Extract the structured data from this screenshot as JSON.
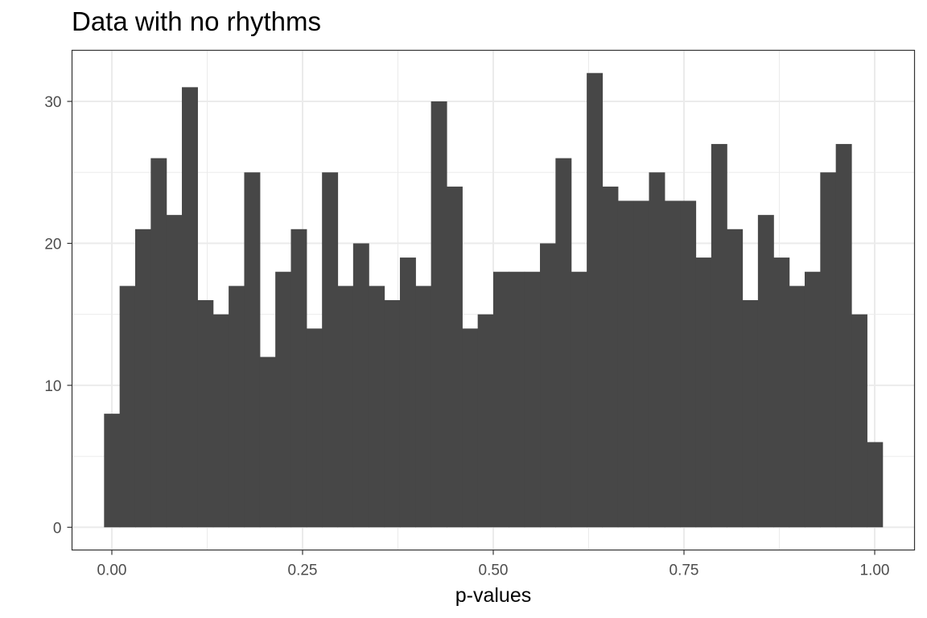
{
  "chart_data": {
    "type": "bar",
    "title": "Data with no rhythms",
    "xlabel": "p-values",
    "ylabel": "",
    "bin_width": 0.0204,
    "bin_centers": [
      0.0,
      0.0204,
      0.0408,
      0.0612,
      0.0816,
      0.102,
      0.1224,
      0.1429,
      0.1633,
      0.1837,
      0.2041,
      0.2245,
      0.2449,
      0.2653,
      0.2857,
      0.3061,
      0.3265,
      0.3469,
      0.3673,
      0.3878,
      0.4082,
      0.4286,
      0.449,
      0.4694,
      0.4898,
      0.5102,
      0.5306,
      0.551,
      0.5714,
      0.5918,
      0.6122,
      0.6327,
      0.6531,
      0.6735,
      0.6939,
      0.7143,
      0.7347,
      0.7551,
      0.7755,
      0.7959,
      0.8163,
      0.8367,
      0.8571,
      0.8776,
      0.898,
      0.9184,
      0.9388,
      0.9592,
      0.9796,
      1.0
    ],
    "values": [
      8,
      17,
      21,
      26,
      22,
      31,
      16,
      15,
      17,
      25,
      12,
      18,
      21,
      14,
      25,
      17,
      20,
      17,
      16,
      19,
      17,
      30,
      24,
      14,
      15,
      18,
      18,
      18,
      20,
      26,
      18,
      32,
      24,
      23,
      23,
      25,
      23,
      23,
      19,
      27,
      21,
      16,
      22,
      19,
      17,
      18,
      25,
      27,
      15,
      6
    ],
    "xlim": [
      -0.0522,
      1.0522
    ],
    "ylim": [
      -1.6,
      33.6
    ],
    "x_ticks": [
      0.0,
      0.25,
      0.5,
      0.75,
      1.0
    ],
    "x_tick_labels": [
      "0.00",
      "0.25",
      "0.50",
      "0.75",
      "1.00"
    ],
    "y_ticks": [
      0,
      10,
      20,
      30
    ],
    "y_tick_labels": [
      "0",
      "10",
      "20",
      "30"
    ],
    "grid": true,
    "colors": {
      "bar": "#474747",
      "grid": "#ebebeb",
      "panel_border": "#333333",
      "tick_text": "#4d4d4d",
      "background": "#ffffff"
    }
  }
}
